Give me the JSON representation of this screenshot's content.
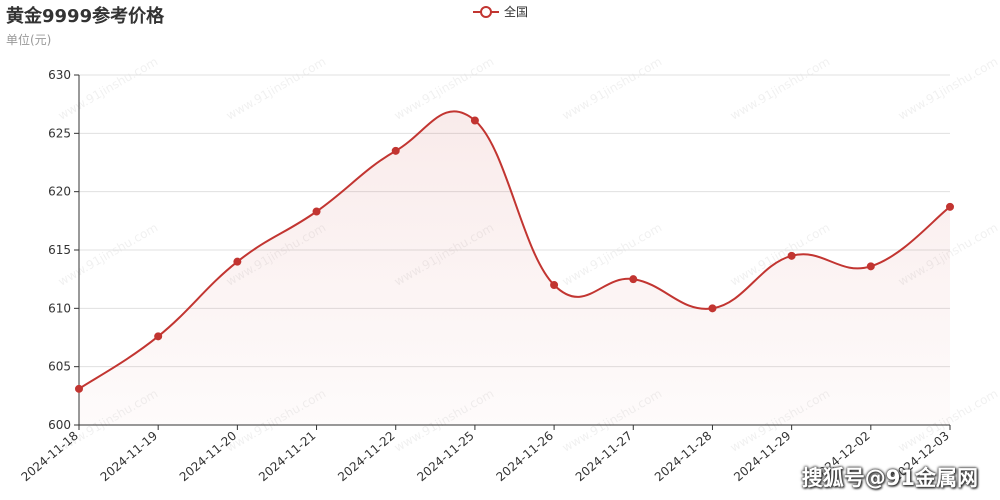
{
  "chart_data": {
    "type": "line",
    "title": "黄金9999参考价格",
    "subtitle": "单位(元)",
    "categories": [
      "2024-11-18",
      "2024-11-19",
      "2024-11-20",
      "2024-11-21",
      "2024-11-22",
      "2024-11-25",
      "2024-11-26",
      "2024-11-27",
      "2024-11-28",
      "2024-11-29",
      "2024-12-02",
      "2024-12-03"
    ],
    "series": [
      {
        "name": "全国",
        "values": [
          603.1,
          607.6,
          614.0,
          618.3,
          623.5,
          626.1,
          612.0,
          612.5,
          610.0,
          614.5,
          613.6,
          618.7
        ],
        "color": "#c23531"
      }
    ],
    "ylim": [
      600,
      630
    ],
    "yticks": [
      600,
      605,
      610,
      615,
      620,
      625,
      630
    ],
    "smooth": true,
    "area_fill": true,
    "grid": true,
    "legend_position": "top-center"
  },
  "watermark_background": "www.91jinshu.com",
  "watermark_corner": "搜狐号@91金属网"
}
